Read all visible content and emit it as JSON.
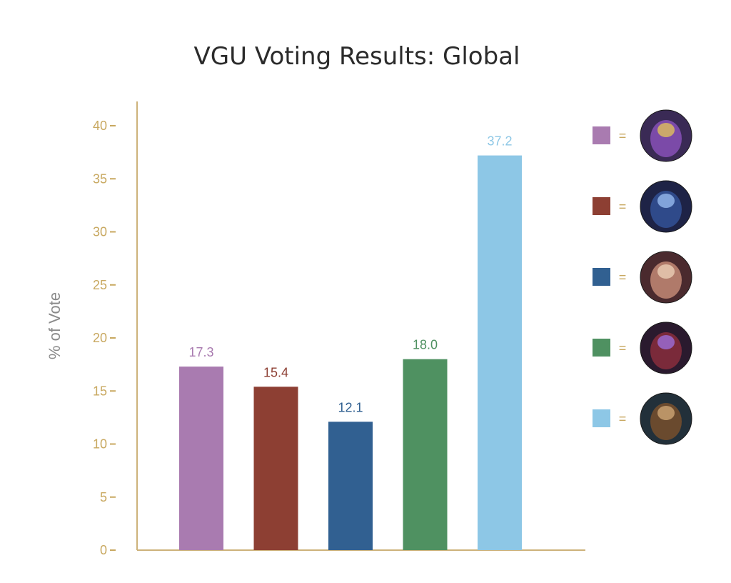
{
  "colors": {
    "axis": "#cdb27a",
    "tick_text": "#c8a860",
    "title": "#2b2b2b",
    "ylabel": "#8a8a8a"
  },
  "legend": [
    {
      "color": "#a97bb0",
      "symbol": "=",
      "icon": "purple-champion-portrait-icon"
    },
    {
      "color": "#8d3f33",
      "symbol": "=",
      "icon": "blue-armored-champion-portrait-icon"
    },
    {
      "color": "#316091",
      "symbol": "=",
      "icon": "female-warrior-portrait-icon"
    },
    {
      "color": "#4f9161",
      "symbol": "=",
      "icon": "purple-skinned-champion-portrait-icon"
    },
    {
      "color": "#8dc7e6",
      "symbol": "=",
      "icon": "werewolf-portrait-icon"
    }
  ],
  "chart_data": {
    "type": "bar",
    "title": "VGU Voting Results: Global",
    "xlabel": "",
    "ylabel": "% of Vote",
    "ylim": [
      0,
      42
    ],
    "yticks": [
      0,
      5,
      10,
      15,
      20,
      25,
      30,
      35,
      40
    ],
    "grid": false,
    "legend_position": "right",
    "series": [
      {
        "color": "#a97bb0",
        "value": 17.3,
        "label": "17.3"
      },
      {
        "color": "#8d3f33",
        "value": 15.4,
        "label": "15.4"
      },
      {
        "color": "#316091",
        "value": 12.1,
        "label": "12.1"
      },
      {
        "color": "#4f9161",
        "value": 18.0,
        "label": "18.0"
      },
      {
        "color": "#8dc7e6",
        "value": 37.2,
        "label": "37.2"
      }
    ]
  }
}
